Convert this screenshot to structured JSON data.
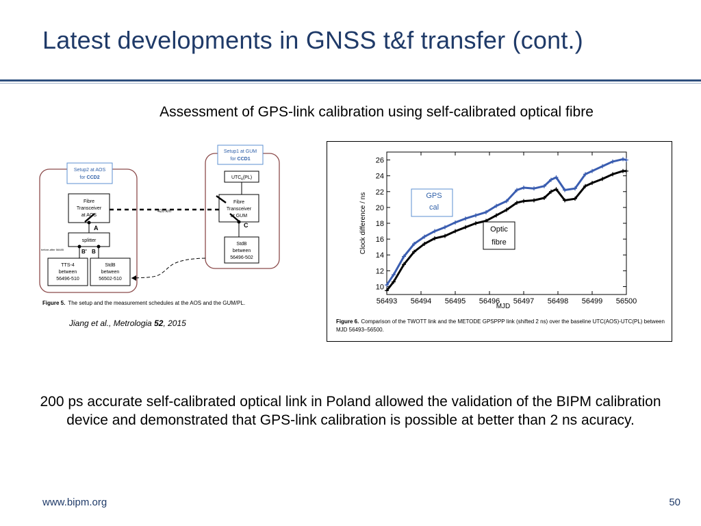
{
  "slide": {
    "title": "Latest developments in GNSS t&f transfer (cont.)",
    "subtitle": "Assessment of GPS-link calibration using self-calibrated optical fibre",
    "body": "200 ps accurate self-calibrated optical link in Poland allowed the validation of the BIPM calibration device and demonstrated that GPS-link calibration is possible at better than 2 ns acuracy.",
    "footer_url": "www.bipm.org",
    "page_number": "50",
    "colors": {
      "title": "#1f3a68",
      "rule": "#2e4f7e",
      "gps_series": "#3a5db0",
      "optic_series": "#000000",
      "setup_border": "#8b4a4a"
    }
  },
  "citation": {
    "prefix": "Jiang et al., Metrologia ",
    "volume": "52",
    "suffix": ", 2015"
  },
  "diagram": {
    "setup2_label_1": "Setup2 at AOS",
    "setup2_label_2": "for ",
    "setup2_label_bold": "CCD2",
    "setup1_label_1": "Setup1 at GUM",
    "setup1_label_2": "for ",
    "setup1_label_bold": "CCD1",
    "utc_box": "UTC",
    "utc_sub": "k",
    "utc_suffix": "(PL)",
    "aos_transceiver": [
      "Fibre",
      "Transceiver",
      "at AOS"
    ],
    "gum_transceiver": [
      "Fibre",
      "Transceiver",
      "at GUM"
    ],
    "point_a": "A",
    "point_c": "C",
    "point_b_prime": "B'",
    "point_b": "B",
    "splitter": "splitter",
    "before_after": "before-after 56485",
    "distance": "420 km",
    "tts4": [
      "TTS-4",
      "between",
      "56496-510"
    ],
    "stdb_aos": [
      "StdB",
      "between",
      "56502-510"
    ],
    "stdb_gum": [
      "StdB",
      "between",
      "56496-502"
    ],
    "caption_bold": "Figure 5.",
    "caption_text": "The setup and the measurement schedules at the AOS and the GUM/PL."
  },
  "chart_data": {
    "type": "line",
    "xlabel": "MJD",
    "ylabel": "Clock difference / ns",
    "xlim": [
      56493,
      56500
    ],
    "ylim": [
      9,
      27
    ],
    "x_ticks": [
      "56493",
      "56494",
      "56495",
      "56496",
      "56497",
      "56498",
      "56499",
      "56500"
    ],
    "y_ticks": [
      "10",
      "12",
      "14",
      "16",
      "18",
      "20",
      "22",
      "24",
      "26"
    ],
    "series": [
      {
        "label_lines": [
          "GPS",
          "cal"
        ],
        "color": "#3a5db0",
        "x": [
          56493.0,
          56493.2,
          56493.5,
          56493.8,
          56494.1,
          56494.4,
          56494.7,
          56495.0,
          56495.3,
          56495.6,
          56495.9,
          56496.2,
          56496.5,
          56496.8,
          56497.0,
          56497.3,
          56497.6,
          56497.8,
          56497.95,
          56498.2,
          56498.5,
          56498.8,
          56499.0,
          56499.3,
          56499.6,
          56499.9,
          56500.0
        ],
        "y": [
          10.2,
          11.5,
          13.8,
          15.4,
          16.3,
          17.0,
          17.5,
          18.1,
          18.6,
          19.0,
          19.4,
          20.2,
          20.8,
          22.2,
          22.5,
          22.4,
          22.7,
          23.5,
          23.8,
          22.2,
          22.4,
          24.2,
          24.6,
          25.2,
          25.8,
          26.1,
          26.0
        ]
      },
      {
        "label_lines": [
          "Optic",
          "fibre"
        ],
        "color": "#000000",
        "x": [
          56493.0,
          56493.2,
          56493.5,
          56493.8,
          56494.1,
          56494.4,
          56494.7,
          56495.0,
          56495.3,
          56495.6,
          56495.9,
          56496.2,
          56496.5,
          56496.8,
          56497.0,
          56497.3,
          56497.6,
          56497.8,
          56497.95,
          56498.2,
          56498.5,
          56498.8,
          56499.0,
          56499.3,
          56499.6,
          56499.9,
          56500.0
        ],
        "y": [
          9.5,
          10.6,
          12.8,
          14.4,
          15.4,
          16.1,
          16.4,
          17.0,
          17.5,
          18.0,
          18.3,
          19.0,
          19.7,
          20.6,
          20.8,
          20.9,
          21.2,
          22.0,
          22.3,
          20.9,
          21.1,
          22.7,
          23.1,
          23.6,
          24.2,
          24.6,
          24.6
        ]
      }
    ],
    "caption_bold": "Figure 6.",
    "caption_line1": "Comparison of the TWOTT link and the METODE GPSPPP link (shifted 2 ns) over the baseline UTC(AOS)-UTC(PL) between",
    "caption_line2": "MJD 56493–56500."
  }
}
